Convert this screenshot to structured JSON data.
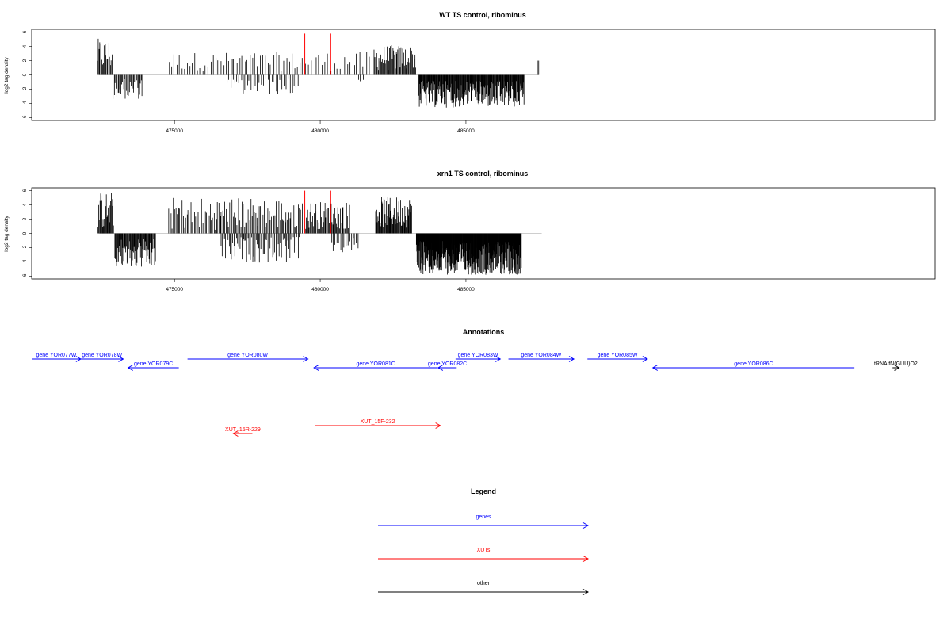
{
  "colors": {
    "genes": "#0000ff",
    "xuts": "#ff0000",
    "other": "#000000",
    "bars": "#000000",
    "markers": "#ff0000",
    "baseline": "#bebebe"
  },
  "chart_data": [
    {
      "type": "bar",
      "title": "WT TS control, ribominus",
      "ylabel": "log2 tag density",
      "xlim": [
        470100,
        501100
      ],
      "ylim": [
        -6.4,
        6.4
      ],
      "yticks": [
        -6,
        -4,
        -2,
        0,
        2,
        4,
        6
      ],
      "ytick_labels": [
        "-6",
        "-4",
        "-2",
        "0",
        "2",
        "4",
        "6"
      ],
      "xticks": [
        475000,
        480000,
        485000
      ],
      "xtick_labels": [
        "475000",
        "480000",
        "485000"
      ],
      "baseline_range": [
        472400,
        487500
      ],
      "markers": [
        479470,
        480360
      ],
      "marker_height": 5.8,
      "grid": false,
      "positive_regions": [
        {
          "from": 472350,
          "to": 472870,
          "step": 30,
          "min": 0.6,
          "max": 5.1
        },
        {
          "from": 474800,
          "to": 479400,
          "step": 90,
          "min": 0.6,
          "max": 3.2
        },
        {
          "from": 479500,
          "to": 481800,
          "step": 110,
          "min": 0.5,
          "max": 3.3
        },
        {
          "from": 481850,
          "to": 483300,
          "step": 28,
          "min": 0.6,
          "max": 4.2
        },
        {
          "from": 487450,
          "to": 487500,
          "step": 40,
          "min": 2.0,
          "max": 2.0
        }
      ],
      "negative_regions": [
        {
          "from": 472900,
          "to": 473950,
          "step": 32,
          "min": 0.6,
          "max": 3.4
        },
        {
          "from": 476800,
          "to": 479300,
          "step": 70,
          "min": 0.5,
          "max": 2.8
        },
        {
          "from": 481300,
          "to": 481600,
          "step": 80,
          "min": 0.4,
          "max": 1.0
        },
        {
          "from": 483380,
          "to": 487000,
          "step": 16,
          "min": 0.8,
          "max": 4.6
        }
      ]
    },
    {
      "type": "bar",
      "title": "xrn1 TS control, ribominus",
      "ylabel": "log2 tag density",
      "xlim": [
        470100,
        501100
      ],
      "ylim": [
        -6.4,
        6.4
      ],
      "yticks": [
        -6,
        -4,
        -2,
        0,
        2,
        4,
        6
      ],
      "ytick_labels": [
        "-6",
        "-4",
        "-2",
        "0",
        "2",
        "4",
        "6"
      ],
      "xticks": [
        475000,
        480000,
        485000
      ],
      "xtick_labels": [
        "475000",
        "480000",
        "485000"
      ],
      "baseline_range": [
        472400,
        487600
      ],
      "markers": [
        479470,
        480360
      ],
      "marker_height": 6.0,
      "grid": false,
      "positive_regions": [
        {
          "from": 472350,
          "to": 472900,
          "step": 22,
          "min": 0.6,
          "max": 5.8
        },
        {
          "from": 474800,
          "to": 479400,
          "step": 42,
          "min": 0.5,
          "max": 5.1
        },
        {
          "from": 479500,
          "to": 481000,
          "step": 30,
          "min": 0.6,
          "max": 4.5
        },
        {
          "from": 481900,
          "to": 483150,
          "step": 20,
          "min": 0.8,
          "max": 5.2
        }
      ],
      "negative_regions": [
        {
          "from": 472950,
          "to": 474350,
          "step": 20,
          "min": 0.8,
          "max": 5.0
        },
        {
          "from": 476600,
          "to": 479300,
          "step": 40,
          "min": 0.5,
          "max": 4.1
        },
        {
          "from": 480400,
          "to": 481300,
          "step": 60,
          "min": 0.4,
          "max": 2.8
        },
        {
          "from": 483300,
          "to": 486900,
          "step": 10,
          "min": 1.0,
          "max": 5.8
        }
      ]
    }
  ],
  "annotations": {
    "title": "Annotations",
    "genes": [
      {
        "label": "gene YOR077W",
        "start": 470100,
        "end": 471000,
        "strand": "+",
        "row": 0
      },
      {
        "label": "gene YOR078W",
        "start": 471000,
        "end": 471780,
        "strand": "+",
        "row": 0
      },
      {
        "label": "gene YOR079C",
        "start": 471870,
        "end": 472800,
        "strand": "-",
        "row": 1
      },
      {
        "label": "gene YOR080W",
        "start": 472960,
        "end": 475170,
        "strand": "+",
        "row": 0
      },
      {
        "label": "gene YOR081C",
        "start": 475280,
        "end": 477550,
        "strand": "-",
        "row": 1
      },
      {
        "label": "gene YOR082C",
        "start": 477560,
        "end": 477900,
        "strand": "-",
        "row": 1
      },
      {
        "label": "gene YOR083W",
        "start": 477880,
        "end": 478700,
        "strand": "+",
        "row": 0
      },
      {
        "label": "gene YOR084W",
        "start": 478850,
        "end": 480050,
        "strand": "+",
        "row": 0
      },
      {
        "label": "gene YOR085W",
        "start": 480300,
        "end": 481400,
        "strand": "+",
        "row": 0
      },
      {
        "label": "gene YOR086C",
        "start": 481500,
        "end": 485200,
        "strand": "-",
        "row": 1
      }
    ],
    "xuts": [
      {
        "label": "XUT_15R-229",
        "start": 473800,
        "end": 474150,
        "strand": "-",
        "row": 3
      },
      {
        "label": "XUT_15F-232",
        "start": 475300,
        "end": 477600,
        "strand": "+",
        "row": 2
      }
    ],
    "other": [
      {
        "label": "tRNA fN(GUU)O2",
        "start": 485900,
        "end": 486020,
        "strand": "+",
        "row": 1
      }
    ]
  },
  "legend": {
    "title": "Legend",
    "items": [
      {
        "label": "genes",
        "kind": "genes"
      },
      {
        "label": "XUTs",
        "kind": "xuts"
      },
      {
        "label": "other",
        "kind": "other"
      }
    ]
  }
}
